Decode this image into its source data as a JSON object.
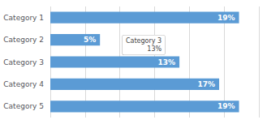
{
  "chart_data": {
    "type": "bar",
    "orientation": "horizontal",
    "categories": [
      "Category 1",
      "Category 2",
      "Category 3",
      "Category 4",
      "Category 5"
    ],
    "values": [
      19,
      5,
      13,
      17,
      19
    ],
    "value_labels": [
      "19%",
      "5%",
      "13%",
      "17%",
      "19%"
    ],
    "data_labels": true,
    "color": "#5b9bd5",
    "xlim": [
      0,
      21
    ],
    "xticks": [
      0,
      3.5,
      7,
      10.5,
      14,
      17.5,
      21
    ],
    "grid": true,
    "tick_labels": "y",
    "annotations": [
      {
        "text": "Category 3\n13%",
        "category": "Category 3"
      }
    ]
  }
}
